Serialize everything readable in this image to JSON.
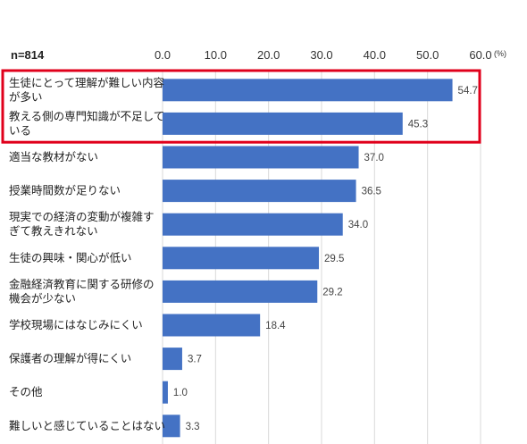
{
  "chart_data": {
    "type": "bar",
    "orientation": "horizontal",
    "sample_label": "n=814",
    "unit": "(%)",
    "xlim": [
      0,
      60
    ],
    "ticks": [
      "0.0",
      "10.0",
      "20.0",
      "30.0",
      "40.0",
      "50.0",
      "60.0"
    ],
    "grid": true,
    "categories": [
      [
        "生徒にとって理解が難しい内容",
        "が多い"
      ],
      [
        "教える側の専門知識が不足して",
        "いる"
      ],
      [
        "適当な教材がない"
      ],
      [
        "授業時間数が足りない"
      ],
      [
        "現実での経済の変動が複雑す",
        "ぎて教えきれない"
      ],
      [
        "生徒の興味・関心が低い"
      ],
      [
        "金融経済教育に関する研修の",
        "機会が少ない"
      ],
      [
        "学校現場にはなじみにくい"
      ],
      [
        "保護者の理解が得にくい"
      ],
      [
        "その他"
      ],
      [
        "難しいと感じていることはない"
      ]
    ],
    "values": [
      54.7,
      45.3,
      37.0,
      36.5,
      34.0,
      29.5,
      29.2,
      18.4,
      3.7,
      1.0,
      3.3
    ],
    "value_labels": [
      "54.7",
      "45.3",
      "37.0",
      "36.5",
      "34.0",
      "29.5",
      "29.2",
      "18.4",
      "3.7",
      "1.0",
      "3.3"
    ],
    "highlight_range": [
      0,
      1
    ],
    "colors": {
      "bar": "#4472C4",
      "highlight_border": "#E0001B",
      "grid": "#D9D9D9"
    }
  }
}
